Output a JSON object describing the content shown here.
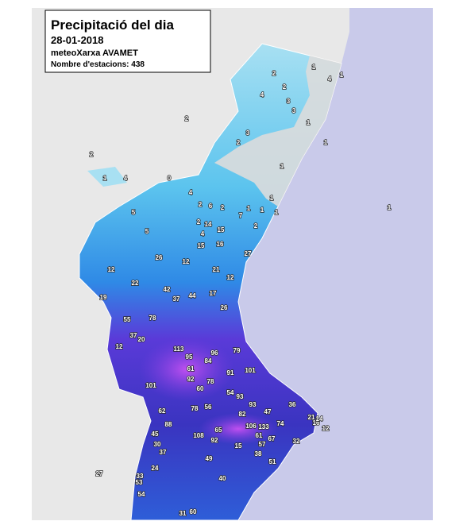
{
  "header": {
    "title": "Precipitació del dia",
    "date": "28-01-2018",
    "source": "meteoXarxa AVAMET",
    "stations_count": "Nombre d'estacions: 438"
  },
  "stations": [
    2,
    4,
    3,
    2,
    1,
    4,
    1,
    3,
    1,
    2,
    2,
    4,
    1,
    2,
    3,
    1,
    1,
    0,
    1,
    5,
    5,
    4,
    2,
    6,
    2,
    2,
    4,
    14,
    15,
    1,
    1,
    1,
    7,
    1,
    2,
    15,
    26,
    12,
    12,
    21,
    12,
    27,
    16,
    19,
    22,
    42,
    37,
    44,
    17,
    26,
    55,
    78,
    37,
    12,
    20,
    113,
    95,
    96,
    79,
    84,
    61,
    101,
    91,
    101,
    92,
    78,
    60,
    93,
    54,
    62,
    88,
    56,
    78,
    93,
    47,
    36,
    21,
    16,
    74,
    65,
    108,
    92,
    106,
    133,
    61,
    45,
    30,
    37,
    49,
    38,
    57,
    51,
    27,
    24,
    40,
    53,
    54,
    60,
    31,
    33,
    15,
    32,
    12,
    14,
    82,
    67
  ]
}
